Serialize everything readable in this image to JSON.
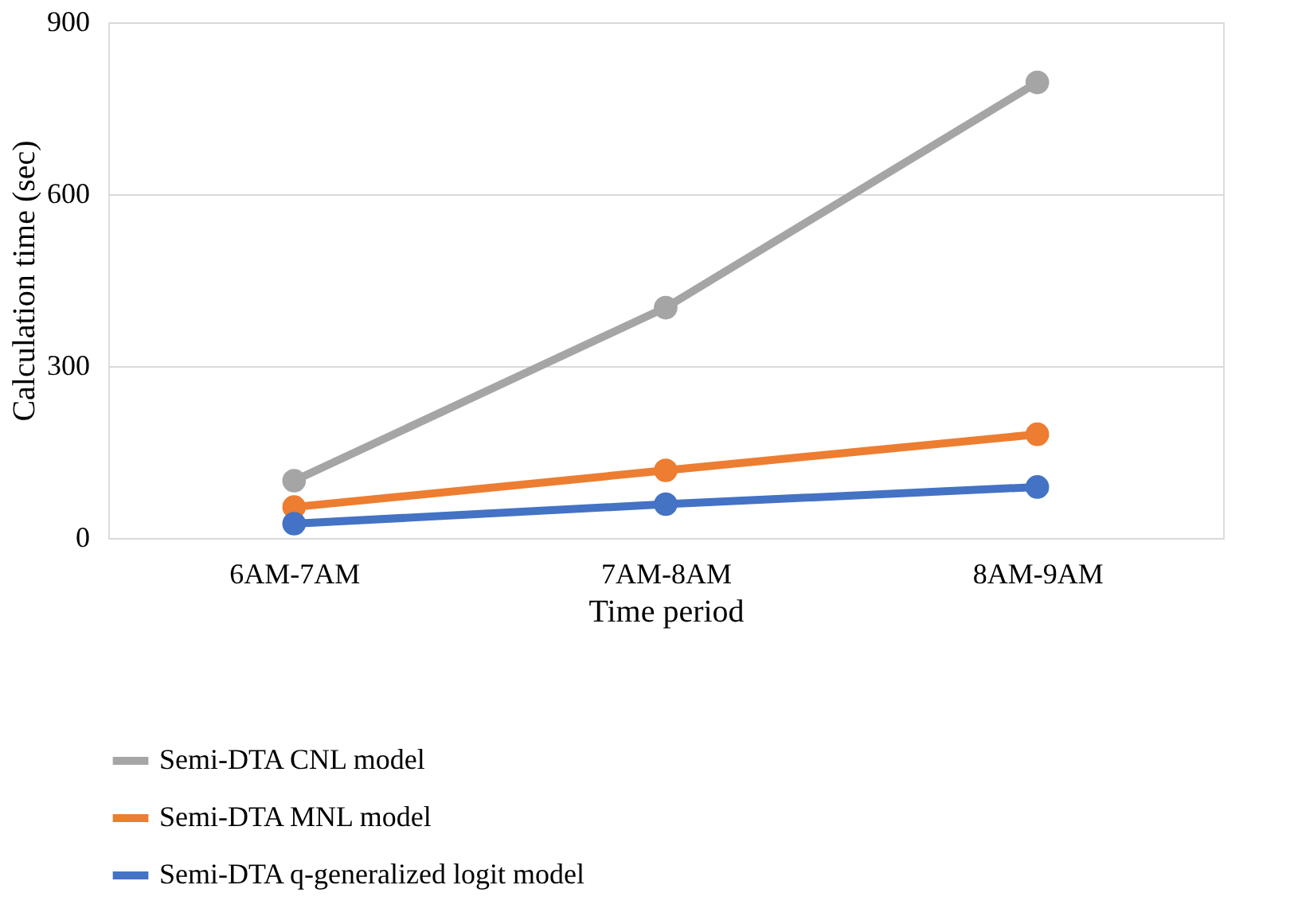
{
  "chart_data": {
    "type": "line",
    "xlabel": "Time period",
    "ylabel": "Calculation time (sec)",
    "categories": [
      "6AM-7AM",
      "7AM-8AM",
      "8AM-9AM"
    ],
    "series": [
      {
        "name": "Semi-DTA CNL model",
        "color": "#a5a5a5",
        "values": [
          100,
          402,
          795
        ]
      },
      {
        "name": "Semi-DTA MNL model",
        "color": "#ed7d31",
        "values": [
          54,
          118,
          181
        ]
      },
      {
        "name": "Semi-DTA q-generalized logit model",
        "color": "#4472c4",
        "values": [
          25,
          59,
          89
        ]
      }
    ],
    "ylim": [
      0,
      900
    ],
    "yticks": [
      0,
      300,
      600,
      900
    ],
    "grid": "y",
    "legend": "bottom",
    "marker": "circle",
    "line_style": "solid"
  }
}
